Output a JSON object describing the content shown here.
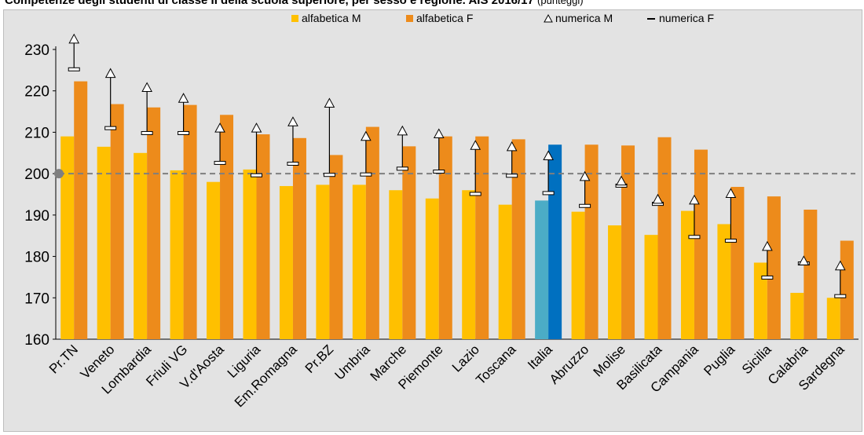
{
  "title": "Competenze degli studenti di classe II della scuola superiore, per sesso e regione. AIS 2016/17",
  "title_units": "(punteggi)",
  "colors": {
    "alfabetica_m": "#ffc000",
    "alfabetica_f": "#ed8b1b",
    "italia_m": "#4bacc6",
    "italia_f": "#0070c0",
    "whisker": "#000000",
    "reference_line": "#7f7f7f",
    "background": "#e3e3e3"
  },
  "chart_data": {
    "type": "bar",
    "categories": [
      "Pr.TN",
      "Veneto",
      "Lombardia",
      "Friuli VG",
      "V.d'Aosta",
      "Liguria",
      "Em.Romagna",
      "Pr.BZ",
      "Umbria",
      "Marche",
      "Piemonte",
      "Lazio",
      "Toscana",
      "Italia",
      "Abruzzo",
      "Molise",
      "Basilicata",
      "Campania",
      "Puglia",
      "Sicilia",
      "Calabria",
      "Sardegna"
    ],
    "series": [
      {
        "name": "alfabetica M",
        "kind": "bar",
        "values": [
          209,
          206.5,
          205,
          200.8,
          198,
          201,
          197,
          197.3,
          197.3,
          196,
          194,
          196,
          192.5,
          193.5,
          190.8,
          187.5,
          185.2,
          191,
          187.8,
          178.5,
          171.2,
          170
        ]
      },
      {
        "name": "alfabetica F",
        "kind": "bar",
        "values": [
          222.3,
          216.8,
          216,
          216.6,
          214.2,
          209.5,
          208.6,
          204.5,
          211.3,
          206.6,
          209,
          209,
          208.3,
          207,
          207,
          206.8,
          208.8,
          205.8,
          196.8,
          194.5,
          191.3,
          183.8
        ]
      },
      {
        "name": "numerica M",
        "kind": "triangle-marker",
        "values": [
          232.5,
          224.2,
          220.8,
          218.2,
          211,
          211,
          212.5,
          217,
          209,
          210.3,
          209.6,
          206.8,
          206.5,
          204.3,
          199.3,
          198.2,
          193.8,
          193.6,
          195.2,
          182.4,
          178.9,
          177.7
        ]
      },
      {
        "name": "numerica F",
        "kind": "dash-marker",
        "values": [
          225.2,
          211,
          209.8,
          209.8,
          202.6,
          199.6,
          202.4,
          199.7,
          199.8,
          201.2,
          200.5,
          195.1,
          199.5,
          195.3,
          192.2,
          197.1,
          192.7,
          184.7,
          183.8,
          174.9,
          178.3,
          170.4
        ]
      }
    ],
    "reference_line": {
      "value": 200,
      "style": "dashed"
    },
    "ylim": [
      160,
      230
    ],
    "yticks": [
      "160",
      "170",
      "180",
      "190",
      "200",
      "210",
      "220",
      "230"
    ],
    "xlabel": "",
    "ylabel": "",
    "legend_position": "top",
    "grid": false
  }
}
